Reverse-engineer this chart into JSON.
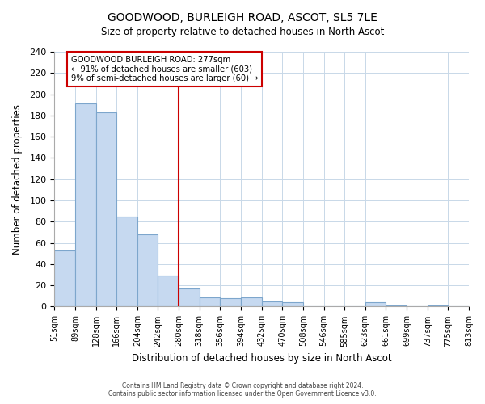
{
  "title": "GOODWOOD, BURLEIGH ROAD, ASCOT, SL5 7LE",
  "subtitle": "Size of property relative to detached houses in North Ascot",
  "xlabel": "Distribution of detached houses by size in North Ascot",
  "ylabel": "Number of detached properties",
  "bin_labels": [
    "51sqm",
    "89sqm",
    "128sqm",
    "166sqm",
    "204sqm",
    "242sqm",
    "280sqm",
    "318sqm",
    "356sqm",
    "394sqm",
    "432sqm",
    "470sqm",
    "508sqm",
    "546sqm",
    "585sqm",
    "623sqm",
    "661sqm",
    "699sqm",
    "737sqm",
    "775sqm",
    "813sqm"
  ],
  "bar_heights": [
    53,
    191,
    183,
    85,
    68,
    29,
    17,
    9,
    8,
    9,
    5,
    4,
    0,
    0,
    0,
    4,
    1,
    0,
    1,
    0
  ],
  "bar_color": "#c6d9f0",
  "bar_edge_color": "#7da6cc",
  "vline_x": 5.5,
  "vline_color": "#cc0000",
  "annotation_title": "GOODWOOD BURLEIGH ROAD: 277sqm",
  "annotation_line1": "← 91% of detached houses are smaller (603)",
  "annotation_line2": "9% of semi-detached houses are larger (60) →",
  "annotation_box_edge": "#cc0000",
  "ylim": [
    0,
    240
  ],
  "yticks": [
    0,
    20,
    40,
    60,
    80,
    100,
    120,
    140,
    160,
    180,
    200,
    220,
    240
  ],
  "footer_line1": "Contains HM Land Registry data © Crown copyright and database right 2024.",
  "footer_line2": "Contains public sector information licensed under the Open Government Licence v3.0."
}
